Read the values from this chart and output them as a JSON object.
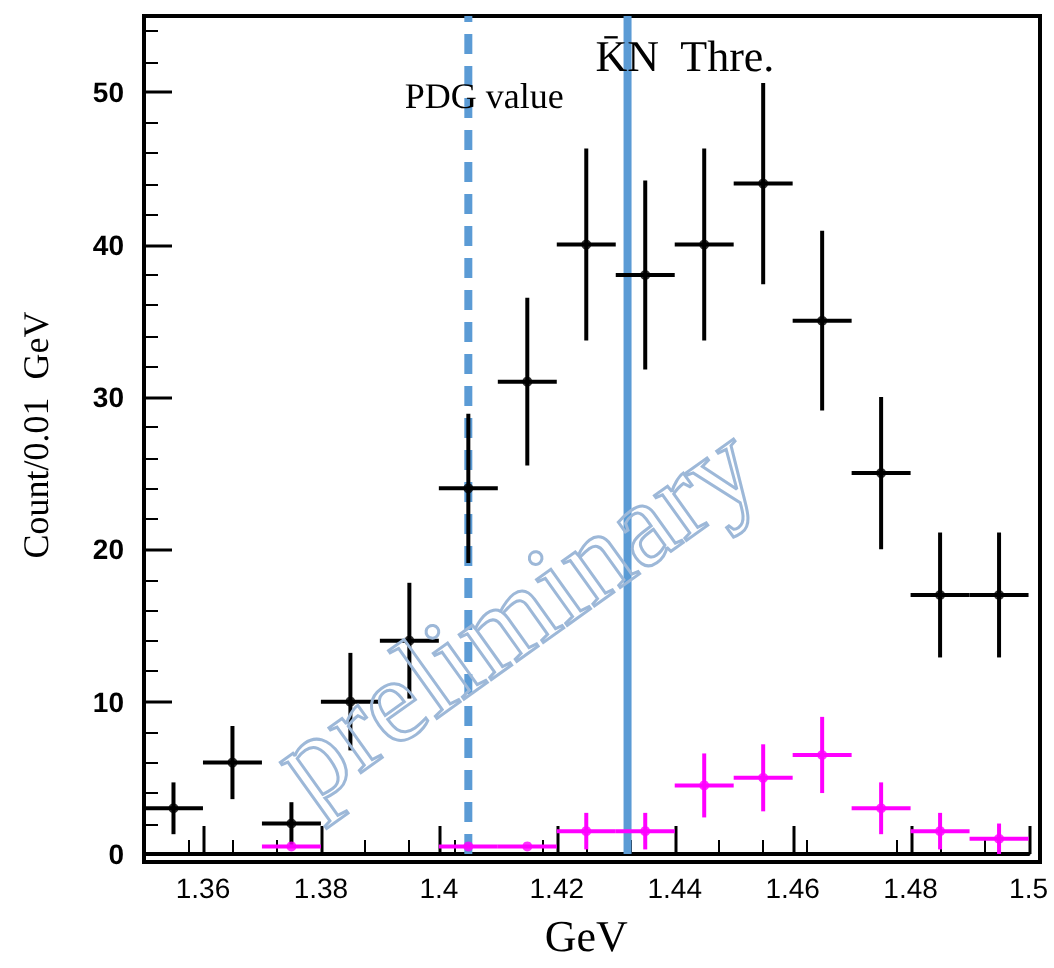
{
  "chart_data": {
    "type": "scatter",
    "grid": false,
    "xlabel": "GeV",
    "ylabel": "Count/0.01  GeV",
    "annotations": [
      "preliminary"
    ],
    "x": [
      1.355,
      1.365,
      1.375,
      1.385,
      1.395,
      1.405,
      1.415,
      1.425,
      1.435,
      1.445,
      1.455,
      1.465,
      1.475,
      1.485,
      1.495
    ],
    "series": [
      {
        "color": "#000000",
        "values": [
          3,
          6,
          2,
          10,
          14,
          24,
          31,
          40,
          38,
          40,
          44,
          35,
          25,
          17,
          17
        ],
        "errors": [
          1.7,
          2.4,
          1.4,
          3.2,
          3.8,
          4.9,
          5.5,
          6.3,
          6.2,
          6.3,
          6.6,
          5.9,
          5,
          4.1,
          4.1
        ],
        "xerrors": [
          0.005,
          0.005,
          0.005,
          0.005,
          0.005,
          0.005,
          0.005,
          0.005,
          0.005,
          0.005,
          0.005,
          0.005,
          0.005,
          0.005,
          0.005
        ]
      },
      {
        "color": "#ff00ff",
        "values": [
          null,
          null,
          0.5,
          null,
          null,
          0.5,
          0.5,
          1.5,
          1.5,
          4.5,
          5,
          6.5,
          3,
          1.5,
          1
        ],
        "errors": [
          null,
          null,
          null,
          null,
          null,
          null,
          null,
          1.2,
          1.2,
          2.1,
          2.2,
          2.5,
          1.7,
          1.2,
          1
        ],
        "xerrors": [
          null,
          null,
          0.005,
          null,
          null,
          0.005,
          0.005,
          0.005,
          0.005,
          0.005,
          0.005,
          0.005,
          0.005,
          0.005,
          0.005
        ]
      }
    ],
    "xlim": [
      1.35,
      1.5
    ],
    "xticks": [
      1.36,
      1.38,
      1.4,
      1.42,
      1.44,
      1.46,
      1.48,
      1.5
    ],
    "ylim": [
      0,
      55
    ],
    "yticks": [
      0,
      10,
      20,
      30,
      40,
      50
    ],
    "ref_lines": [
      {
        "axis": "x",
        "value": 1.405,
        "label": "PDG value",
        "color": "#5b9bd5",
        "line_style": "dashed"
      },
      {
        "axis": "x",
        "value": 1.432,
        "label": "K̄N  Thre.",
        "color": "#5b9bd5",
        "line_style": "solid"
      }
    ]
  }
}
